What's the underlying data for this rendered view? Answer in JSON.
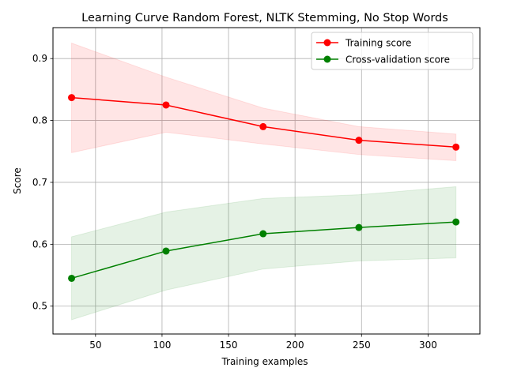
{
  "chart_data": {
    "type": "line",
    "title": "Learning Curve Random Forest, NLTK Stemming, No Stop Words",
    "xlabel": "Training examples",
    "ylabel": "Score",
    "xlim": [
      18,
      339
    ],
    "ylim": [
      0.455,
      0.95
    ],
    "xticks": [
      50,
      100,
      150,
      200,
      250,
      300
    ],
    "yticks": [
      0.5,
      0.6,
      0.7,
      0.8,
      0.9
    ],
    "xtick_labels": [
      "50",
      "100",
      "150",
      "200",
      "250",
      "300"
    ],
    "ytick_labels": [
      "0.5",
      "0.6",
      "0.7",
      "0.8",
      "0.9"
    ],
    "grid": true,
    "legend_position": "top-right",
    "x": [
      32,
      103,
      176,
      248,
      321
    ],
    "series": [
      {
        "name": "Training score",
        "color": "#ff0000",
        "values": [
          0.837,
          0.825,
          0.79,
          0.768,
          0.757
        ],
        "band_upper": [
          0.925,
          0.87,
          0.82,
          0.79,
          0.778
        ],
        "band_lower": [
          0.748,
          0.781,
          0.762,
          0.745,
          0.735
        ],
        "band_color": "#ff0000"
      },
      {
        "name": "Cross-validation score",
        "color": "#008000",
        "values": [
          0.545,
          0.589,
          0.617,
          0.627,
          0.636
        ],
        "band_upper": [
          0.612,
          0.652,
          0.674,
          0.68,
          0.693
        ],
        "band_lower": [
          0.478,
          0.526,
          0.56,
          0.573,
          0.578
        ],
        "band_color": "#008000"
      }
    ]
  }
}
